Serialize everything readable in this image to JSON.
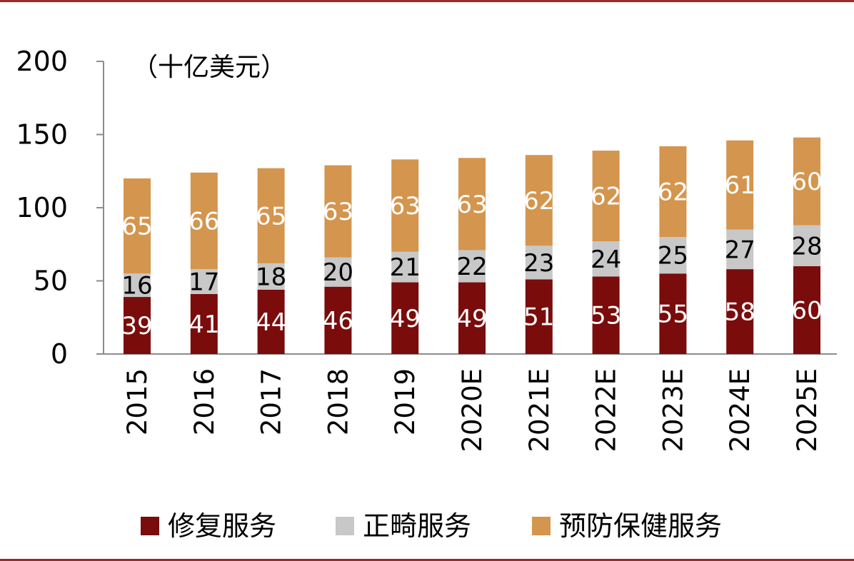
{
  "chart_data": {
    "type": "bar",
    "stacked": true,
    "unit_label": "（十亿美元）",
    "categories": [
      "2015",
      "2016",
      "2017",
      "2018",
      "2019",
      "2020E",
      "2021E",
      "2022E",
      "2023E",
      "2024E",
      "2025E"
    ],
    "series": [
      {
        "name": "修复服务",
        "color": "#7a0c0c",
        "label_color": "#ffffff",
        "values": [
          39,
          41,
          44,
          46,
          49,
          49,
          51,
          53,
          55,
          58,
          60
        ]
      },
      {
        "name": "正畸服务",
        "color": "#c8c8c8",
        "label_color": "#000000",
        "values": [
          16,
          17,
          18,
          20,
          21,
          22,
          23,
          24,
          25,
          27,
          28
        ]
      },
      {
        "name": "预防保健服务",
        "color": "#d4954e",
        "label_color": "#ffffff",
        "values": [
          65,
          66,
          65,
          63,
          63,
          63,
          62,
          62,
          62,
          61,
          60
        ]
      }
    ],
    "ylim": [
      0,
      200
    ],
    "yticks": [
      0,
      50,
      100,
      150,
      200
    ],
    "grid": false,
    "legend_position": "bottom",
    "title": "",
    "xlabel": "",
    "ylabel": ""
  }
}
